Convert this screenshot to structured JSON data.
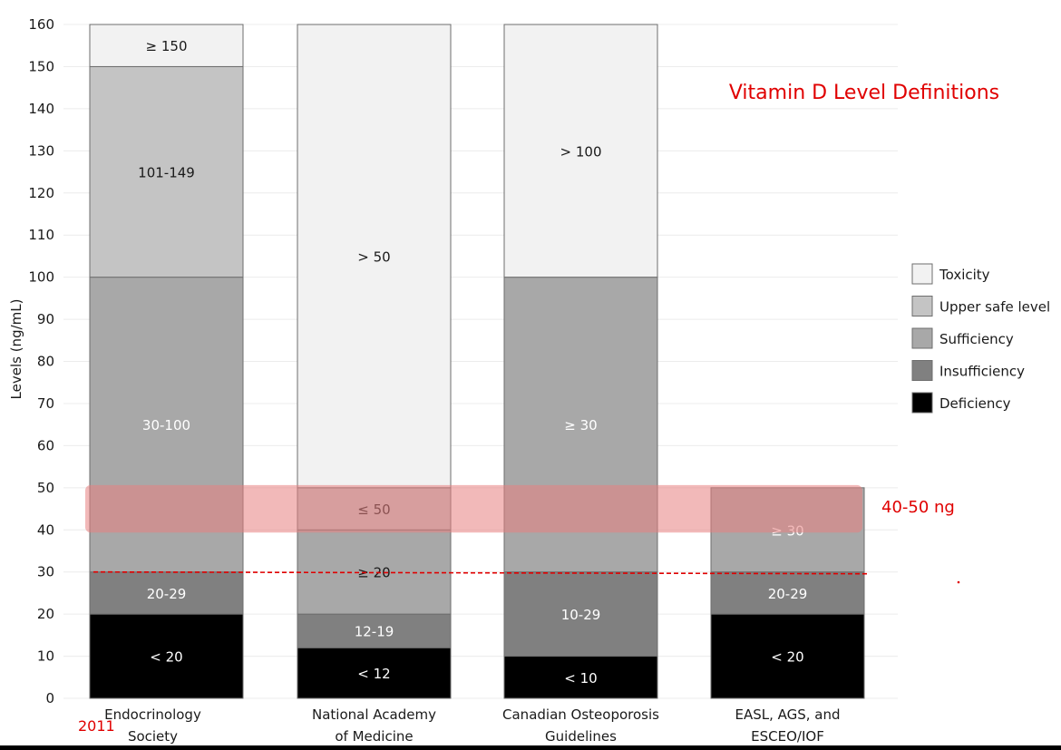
{
  "chart_data": {
    "type": "bar",
    "stacked": true,
    "title": "Vitamin D Level Definitions",
    "ylabel": "Levels (ng/mL)",
    "xlabel": "",
    "ylim": [
      0,
      160
    ],
    "yticks": [
      0,
      10,
      20,
      30,
      40,
      50,
      60,
      70,
      80,
      90,
      100,
      110,
      120,
      130,
      140,
      150,
      160
    ],
    "grid": true,
    "legend_position": "right",
    "categories": [
      [
        "Endocrinology",
        "Society"
      ],
      [
        "National Academy",
        "of Medicine"
      ],
      [
        "Canadian Osteoporosis",
        "Guidelines"
      ],
      [
        "EASL, AGS, and",
        "ESCEO/IOF"
      ]
    ],
    "legend": [
      {
        "key": "toxicity",
        "name": "Toxicity",
        "color": "#f2f2f2"
      },
      {
        "key": "upper",
        "name": "Upper safe level",
        "color": "#c4c4c4"
      },
      {
        "key": "sufficiency",
        "name": "Sufficiency",
        "color": "#a8a8a8"
      },
      {
        "key": "insufficiency",
        "name": "Insufficiency",
        "color": "#808080"
      },
      {
        "key": "deficiency",
        "name": "Deficiency",
        "color": "#000000"
      }
    ],
    "bars": [
      {
        "segments": [
          {
            "key": "deficiency",
            "from": 0,
            "to": 20,
            "label": "< 20"
          },
          {
            "key": "insufficiency",
            "from": 20,
            "to": 30,
            "label": "20-29"
          },
          {
            "key": "sufficiency",
            "from": 30,
            "to": 100,
            "label": "30-100"
          },
          {
            "key": "upper",
            "from": 100,
            "to": 150,
            "label": "101-149"
          },
          {
            "key": "toxicity",
            "from": 150,
            "to": 160,
            "label": "≥ 150"
          }
        ]
      },
      {
        "segments": [
          {
            "key": "deficiency",
            "from": 0,
            "to": 12,
            "label": "< 12"
          },
          {
            "key": "insufficiency",
            "from": 12,
            "to": 20,
            "label": "12-19"
          },
          {
            "key": "sufficiency",
            "from": 20,
            "to": 40,
            "label": "≥ 20"
          },
          {
            "key": "upper",
            "from": 40,
            "to": 50,
            "label": "≤ 50"
          },
          {
            "key": "toxicity",
            "from": 50,
            "to": 160,
            "label": "> 50"
          }
        ]
      },
      {
        "segments": [
          {
            "key": "deficiency",
            "from": 0,
            "to": 10,
            "label": "< 10"
          },
          {
            "key": "insufficiency",
            "from": 10,
            "to": 30,
            "label": "10-29"
          },
          {
            "key": "sufficiency",
            "from": 30,
            "to": 100,
            "label": "≥ 30"
          },
          {
            "key": "toxicity",
            "from": 100,
            "to": 160,
            "label": "> 100"
          }
        ]
      },
      {
        "segments": [
          {
            "key": "deficiency",
            "from": 0,
            "to": 20,
            "label": "< 20"
          },
          {
            "key": "insufficiency",
            "from": 20,
            "to": 30,
            "label": "20-29"
          },
          {
            "key": "sufficiency",
            "from": 30,
            "to": 50,
            "label": "≥ 30"
          }
        ]
      }
    ],
    "annotations": {
      "band": {
        "from": 40,
        "to": 50,
        "label": "40-50 ng",
        "color": "#e88080"
      },
      "dashed_line": {
        "y": 30,
        "color": "#e00000"
      },
      "year": "2011"
    }
  }
}
